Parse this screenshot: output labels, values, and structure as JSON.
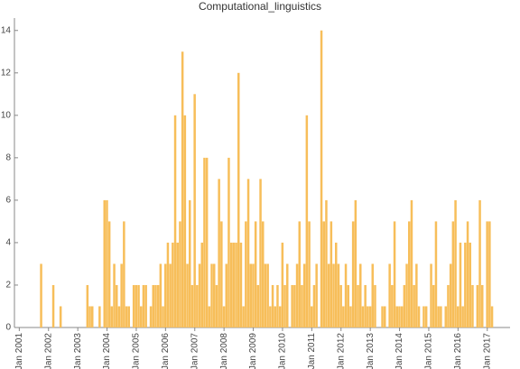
{
  "chart_data": {
    "type": "bar",
    "title": "Computational_linguistics",
    "categories": [
      "Jan 2001",
      null,
      null,
      null,
      null,
      null,
      null,
      null,
      null,
      null,
      null,
      null,
      "Jan 2002",
      null,
      null,
      null,
      null,
      null,
      null,
      null,
      null,
      null,
      null,
      null,
      "Jan 2003",
      null,
      null,
      null,
      null,
      null,
      null,
      null,
      null,
      null,
      null,
      null,
      "Jan 2004",
      null,
      null,
      null,
      null,
      null,
      null,
      null,
      null,
      null,
      null,
      null,
      "Jan 2005",
      null,
      null,
      null,
      null,
      null,
      null,
      null,
      null,
      null,
      null,
      null,
      "Jan 2006",
      null,
      null,
      null,
      null,
      null,
      null,
      null,
      null,
      null,
      null,
      null,
      "Jan 2007",
      null,
      null,
      null,
      null,
      null,
      null,
      null,
      null,
      null,
      null,
      null,
      "Jan 2008",
      null,
      null,
      null,
      null,
      null,
      null,
      null,
      null,
      null,
      null,
      null,
      "Jan 2009",
      null,
      null,
      null,
      null,
      null,
      null,
      null,
      null,
      null,
      null,
      null,
      "Jan 2010",
      null,
      null,
      null,
      null,
      null,
      null,
      null,
      null,
      null,
      null,
      null,
      "Jan 2011",
      null,
      null,
      null,
      null,
      null,
      null,
      null,
      null,
      null,
      null,
      null,
      "Jan 2012",
      null,
      null,
      null,
      null,
      null,
      null,
      null,
      null,
      null,
      null,
      null,
      "Jan 2013",
      null,
      null,
      null,
      null,
      null,
      null,
      null,
      null,
      null,
      null,
      null,
      "Jan 2014",
      null,
      null,
      null,
      null,
      null,
      null,
      null,
      null,
      null,
      null,
      null,
      "Jan 2015",
      null,
      null,
      null,
      null,
      null,
      null,
      null,
      null,
      null,
      null,
      null,
      "Jan 2016",
      null,
      null,
      null,
      null,
      null,
      null,
      null,
      null,
      null,
      null,
      null,
      "Jan 2017",
      null,
      null,
      null
    ],
    "values": [
      0,
      0,
      0,
      0,
      0,
      0,
      0,
      0,
      0,
      3,
      0,
      0,
      0,
      0,
      2,
      0,
      0,
      1,
      0,
      0,
      0,
      0,
      0,
      0,
      0,
      0,
      0,
      0,
      2,
      1,
      1,
      0,
      0,
      1,
      0,
      6,
      6,
      5,
      1,
      3,
      2,
      1,
      3,
      5,
      1,
      1,
      0,
      2,
      2,
      2,
      1,
      2,
      2,
      0,
      1,
      2,
      2,
      2,
      3,
      1,
      3,
      4,
      3,
      4,
      10,
      4,
      5,
      13,
      10,
      3,
      6,
      2,
      11,
      2,
      3,
      4,
      8,
      8,
      1,
      3,
      3,
      2,
      7,
      5,
      1,
      3,
      8,
      4,
      4,
      4,
      12,
      4,
      1,
      5,
      7,
      3,
      3,
      5,
      2,
      7,
      5,
      3,
      3,
      1,
      2,
      1,
      2,
      1,
      4,
      2,
      3,
      0,
      2,
      2,
      3,
      5,
      2,
      3,
      10,
      5,
      1,
      2,
      3,
      0,
      14,
      5,
      6,
      3,
      5,
      3,
      4,
      3,
      2,
      1,
      3,
      2,
      1,
      5,
      6,
      2,
      3,
      1,
      2,
      1,
      1,
      3,
      2,
      0,
      0,
      1,
      1,
      0,
      3,
      2,
      5,
      1,
      1,
      1,
      2,
      3,
      5,
      6,
      2,
      3,
      1,
      0,
      1,
      1,
      0,
      3,
      2,
      5,
      1,
      1,
      0,
      1,
      2,
      3,
      5,
      6,
      1,
      4,
      1,
      4,
      5,
      4,
      2,
      0,
      2,
      6,
      2,
      0,
      5,
      5,
      1,
      0
    ],
    "color": "#f7be5a",
    "ylim": [
      0,
      14.5
    ],
    "yticks": [
      0,
      2,
      4,
      6,
      8,
      10,
      12,
      14
    ],
    "grid": false
  }
}
